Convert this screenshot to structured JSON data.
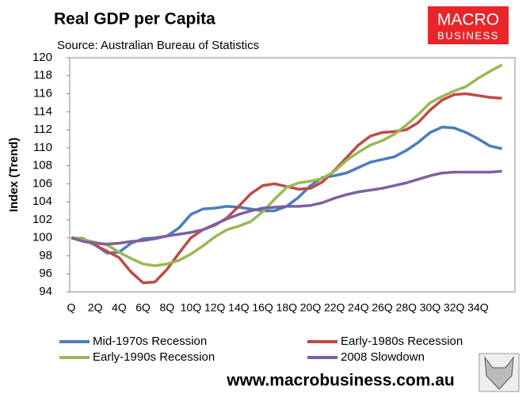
{
  "chart_data": {
    "type": "line",
    "title": "Real GDP per Capita",
    "subtitle": "Source: Australian Bureau of Statistics",
    "y_label": "Index (Trend)",
    "logo": [
      "MACRO",
      "BUSINESS"
    ],
    "footer": "www.macrobusiness.com.au",
    "categories": [
      "Q",
      null,
      "2Q",
      null,
      "4Q",
      null,
      "6Q",
      null,
      "8Q",
      null,
      "10Q",
      null,
      "12Q",
      null,
      "14Q",
      null,
      "16Q",
      null,
      "18Q",
      null,
      "20Q",
      null,
      "22Q",
      null,
      "24Q",
      null,
      "26Q",
      null,
      "28Q",
      null,
      "30Q",
      null,
      "32Q",
      null,
      "34Q",
      null,
      null
    ],
    "ylim": [
      94,
      120
    ],
    "yticks": [
      94,
      96,
      98,
      100,
      102,
      104,
      106,
      108,
      110,
      112,
      114,
      116,
      118,
      120
    ],
    "grid": false,
    "legend": "bottom",
    "series": [
      {
        "name": "Mid-1970s Recession",
        "color": "#4a7ebb",
        "values": [
          100,
          99.8,
          99.2,
          98.3,
          98.4,
          99.4,
          99.9,
          100,
          100.2,
          101.1,
          102.6,
          103.2,
          103.3,
          103.5,
          103.4,
          103.2,
          103.0,
          103.0,
          103.5,
          104.5,
          105.8,
          106.7,
          106.9,
          107.2,
          107.8,
          108.4,
          108.7,
          109.0,
          109.7,
          110.6,
          111.7,
          112.3,
          112.2,
          111.7,
          111.0,
          110.2,
          109.9
        ]
      },
      {
        "name": "Early-1980s Recession",
        "color": "#be4b48",
        "values": [
          100,
          99.9,
          99.2,
          98.5,
          97.8,
          96.2,
          95.0,
          95.1,
          96.5,
          98.3,
          100.0,
          100.9,
          101.4,
          102.2,
          103.5,
          104.9,
          105.8,
          106.0,
          105.7,
          105.4,
          105.5,
          106.2,
          107.5,
          108.9,
          110.3,
          111.3,
          111.7,
          111.8,
          112.0,
          112.8,
          114.2,
          115.3,
          115.9,
          116.0,
          115.8,
          115.6,
          115.5
        ]
      },
      {
        "name": "Early-1990s Recession",
        "color": "#98b954",
        "values": [
          100,
          99.8,
          99.5,
          99.2,
          98.4,
          97.7,
          97.1,
          96.9,
          97.1,
          97.5,
          98.2,
          99.1,
          100.1,
          100.9,
          101.3,
          101.8,
          102.9,
          104.3,
          105.6,
          106.1,
          106.3,
          106.6,
          107.4,
          108.6,
          109.5,
          110.3,
          110.8,
          111.5,
          112.5,
          113.7,
          115.0,
          115.7,
          116.3,
          116.8,
          117.7,
          118.5,
          119.2
        ]
      },
      {
        "name": "2008 Slowdown",
        "color": "#7d60a0",
        "values": [
          100,
          99.6,
          99.4,
          99.3,
          99.4,
          99.6,
          99.7,
          99.9,
          100.2,
          100.4,
          100.6,
          100.9,
          101.5,
          102.1,
          102.6,
          103.0,
          103.3,
          103.4,
          103.5,
          103.5,
          103.6,
          103.9,
          104.4,
          104.8,
          105.1,
          105.3,
          105.5,
          105.8,
          106.1,
          106.5,
          106.9,
          107.2,
          107.3,
          107.3,
          107.3,
          107.3,
          107.4
        ]
      }
    ]
  }
}
